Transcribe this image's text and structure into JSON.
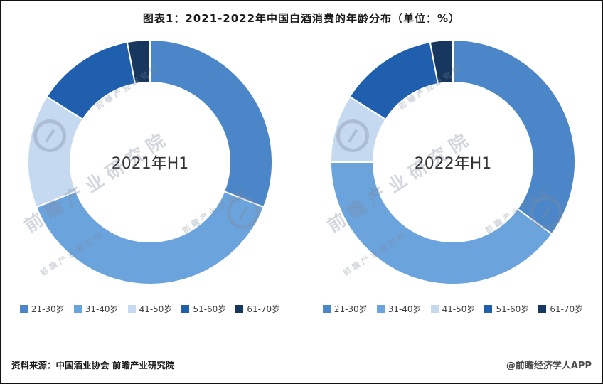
{
  "title": "图表1：2021-2022年中国白酒消费的年龄分布（单位：%）",
  "source": "资料来源：中国酒业协会 前瞻产业研究院",
  "credit": "@前瞻经济学人APP",
  "watermark": "前瞻产业研究院",
  "chart_data": [
    {
      "type": "pie",
      "donut": true,
      "title": "2021年H1",
      "categories": [
        "21-30岁",
        "31-40岁",
        "41-50岁",
        "51-60岁",
        "61-70岁"
      ],
      "values": [
        31,
        38,
        15,
        13,
        3
      ],
      "colors": [
        "#4a86c8",
        "#6ba3dc",
        "#c5d9f1",
        "#1f5fae",
        "#17375e"
      ],
      "legend_position": "bottom"
    },
    {
      "type": "pie",
      "donut": true,
      "title": "2022年H1",
      "categories": [
        "21-30岁",
        "31-40岁",
        "41-50岁",
        "51-60岁",
        "61-70岁"
      ],
      "values": [
        35,
        40,
        9,
        13,
        3
      ],
      "colors": [
        "#4a86c8",
        "#6ba3dc",
        "#c5d9f1",
        "#1f5fae",
        "#17375e"
      ],
      "legend_position": "bottom"
    }
  ]
}
